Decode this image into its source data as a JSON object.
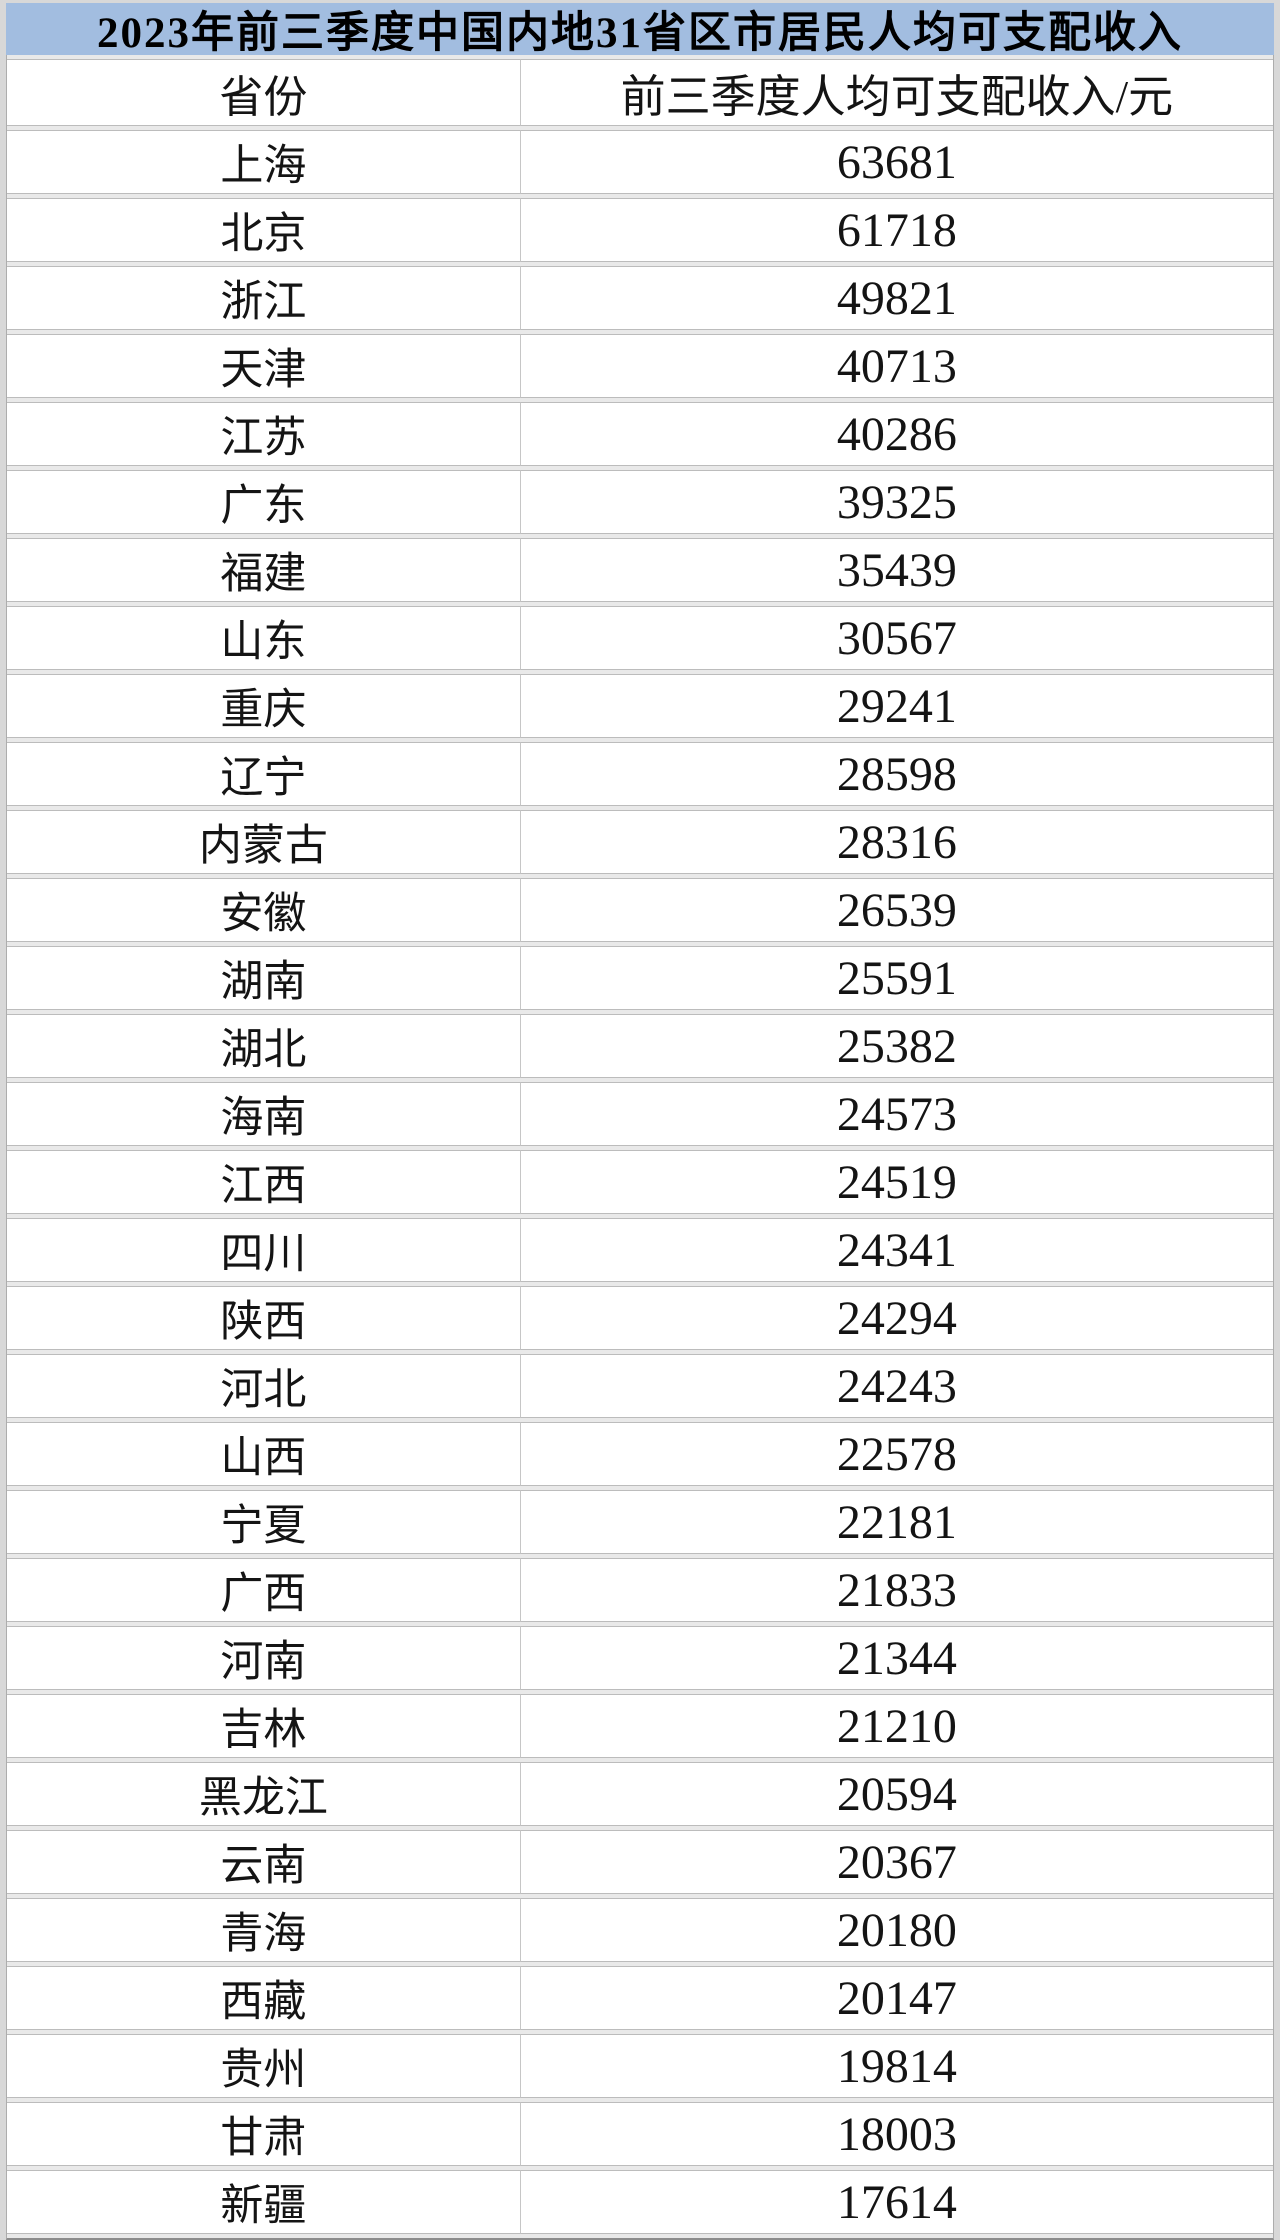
{
  "page": {
    "background": "#d8d8d8"
  },
  "title": {
    "text": "2023年前三季度中国内地31省区市居民人均可支配收入",
    "background": "#a2bde0",
    "text_color": "#000000"
  },
  "table": {
    "headers": {
      "province": "省份",
      "income": "前三季度人均可支配收入/元"
    },
    "rows": [
      {
        "province": "上海",
        "income": "63681"
      },
      {
        "province": "北京",
        "income": "61718"
      },
      {
        "province": "浙江",
        "income": "49821"
      },
      {
        "province": "天津",
        "income": "40713"
      },
      {
        "province": "江苏",
        "income": "40286"
      },
      {
        "province": "广东",
        "income": "39325"
      },
      {
        "province": "福建",
        "income": "35439"
      },
      {
        "province": "山东",
        "income": "30567"
      },
      {
        "province": "重庆",
        "income": "29241"
      },
      {
        "province": "辽宁",
        "income": "28598"
      },
      {
        "province": "内蒙古",
        "income": "28316"
      },
      {
        "province": "安徽",
        "income": "26539"
      },
      {
        "province": "湖南",
        "income": "25591"
      },
      {
        "province": "湖北",
        "income": "25382"
      },
      {
        "province": "海南",
        "income": "24573"
      },
      {
        "province": "江西",
        "income": "24519"
      },
      {
        "province": "四川",
        "income": "24341"
      },
      {
        "province": "陕西",
        "income": "24294"
      },
      {
        "province": "河北",
        "income": "24243"
      },
      {
        "province": "山西",
        "income": "22578"
      },
      {
        "province": "宁夏",
        "income": "22181"
      },
      {
        "province": "广西",
        "income": "21833"
      },
      {
        "province": "河南",
        "income": "21344"
      },
      {
        "province": "吉林",
        "income": "21210"
      },
      {
        "province": "黑龙江",
        "income": "20594"
      },
      {
        "province": "云南",
        "income": "20367"
      },
      {
        "province": "青海",
        "income": "20180"
      },
      {
        "province": "西藏",
        "income": "20147"
      },
      {
        "province": "贵州",
        "income": "19814"
      },
      {
        "province": "甘肃",
        "income": "18003"
      },
      {
        "province": "新疆",
        "income": "17614"
      }
    ]
  },
  "chart_data": {
    "type": "table",
    "title": "2023年前三季度中国内地31省区市居民人均可支配收入",
    "columns": [
      "省份",
      "前三季度人均可支配收入/元"
    ],
    "categories": [
      "上海",
      "北京",
      "浙江",
      "天津",
      "江苏",
      "广东",
      "福建",
      "山东",
      "重庆",
      "辽宁",
      "内蒙古",
      "安徽",
      "湖南",
      "湖北",
      "海南",
      "江西",
      "四川",
      "陕西",
      "河北",
      "山西",
      "宁夏",
      "广西",
      "河南",
      "吉林",
      "黑龙江",
      "云南",
      "青海",
      "西藏",
      "贵州",
      "甘肃",
      "新疆"
    ],
    "values": [
      63681,
      61718,
      49821,
      40713,
      40286,
      39325,
      35439,
      30567,
      29241,
      28598,
      28316,
      26539,
      25591,
      25382,
      24573,
      24519,
      24341,
      24294,
      24243,
      22578,
      22181,
      21833,
      21344,
      21210,
      20594,
      20367,
      20180,
      20147,
      19814,
      18003,
      17614
    ],
    "unit": "元"
  }
}
